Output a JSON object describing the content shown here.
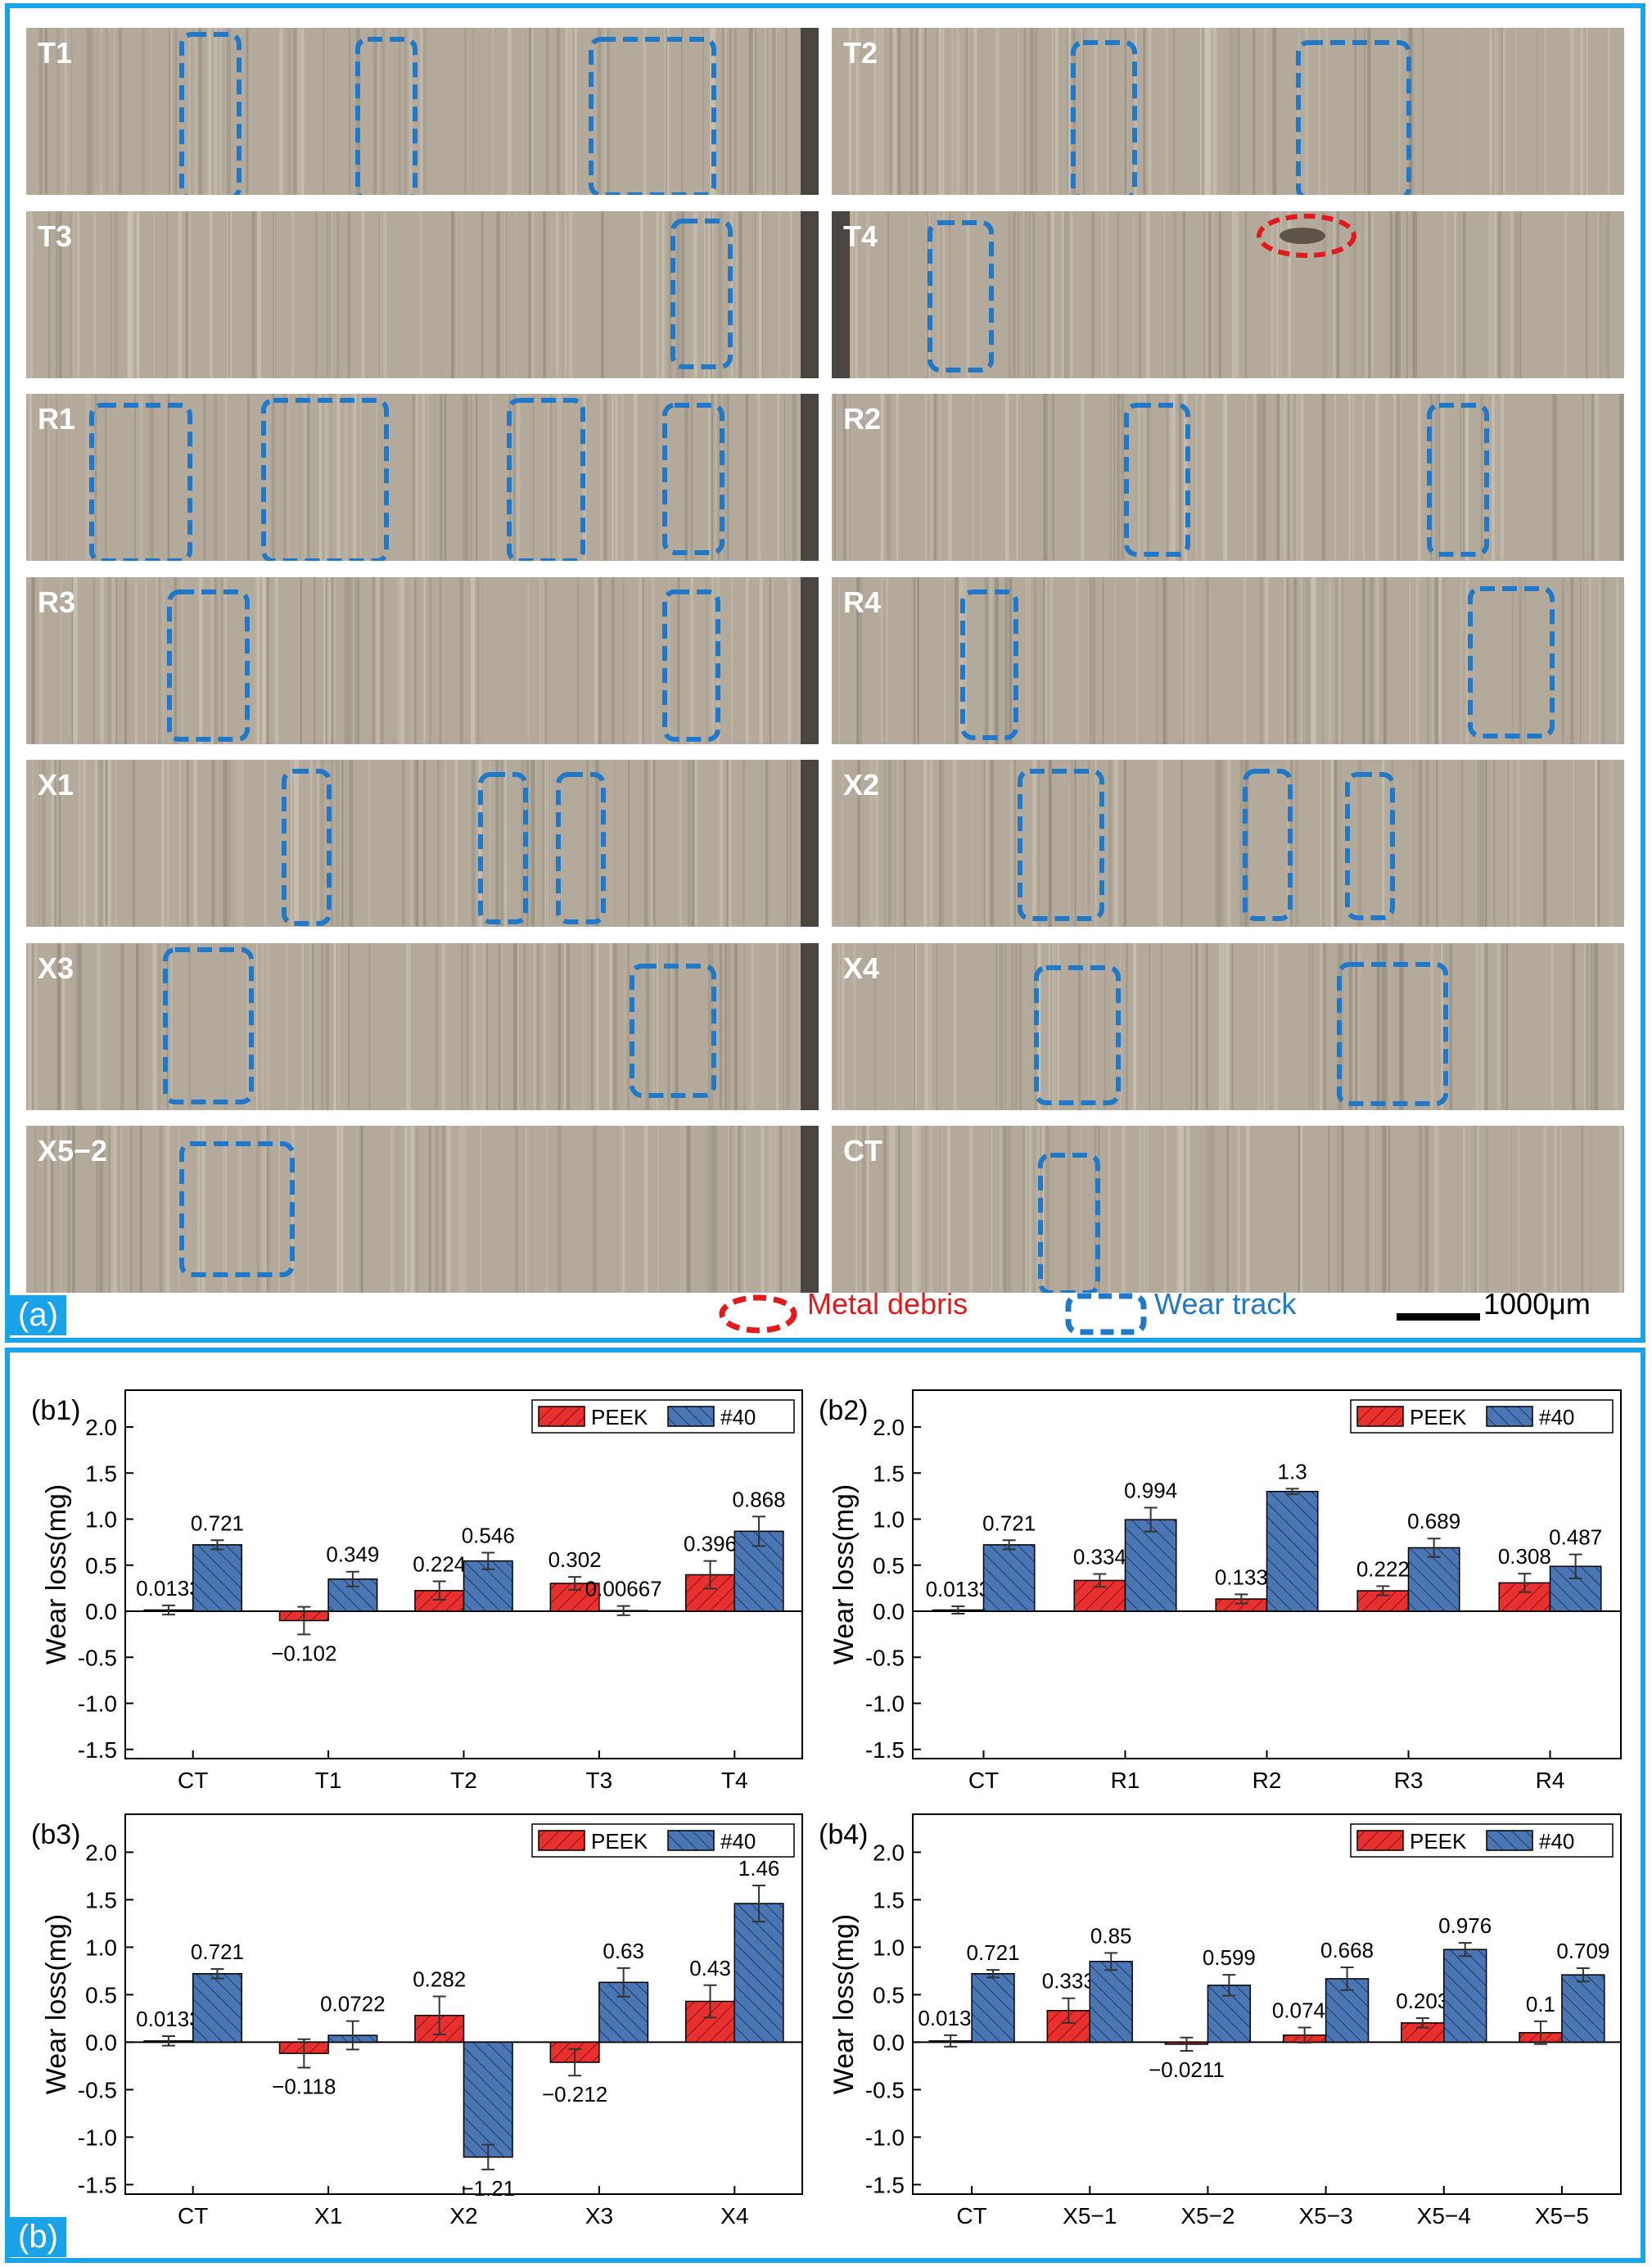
{
  "panel_a": {
    "label": "(a)",
    "samples": [
      {
        "label": "T1",
        "track_count": 3,
        "debris": false
      },
      {
        "label": "T2",
        "track_count": 2,
        "debris": false
      },
      {
        "label": "T3",
        "track_count": 1,
        "debris": false
      },
      {
        "label": "T4",
        "track_count": 1,
        "debris": true
      },
      {
        "label": "R1",
        "track_count": 4,
        "debris": false
      },
      {
        "label": "R2",
        "track_count": 2,
        "debris": false
      },
      {
        "label": "R3",
        "track_count": 2,
        "debris": false
      },
      {
        "label": "R4",
        "track_count": 2,
        "debris": false
      },
      {
        "label": "X1",
        "track_count": 3,
        "debris": false
      },
      {
        "label": "X2",
        "track_count": 3,
        "debris": false
      },
      {
        "label": "X3",
        "track_count": 2,
        "debris": false
      },
      {
        "label": "X4",
        "track_count": 2,
        "debris": false
      },
      {
        "label": "X5−2",
        "track_count": 1,
        "debris": false
      },
      {
        "label": "CT",
        "track_count": 1,
        "debris": false
      }
    ],
    "legend": {
      "metal_debris": "Metal debris",
      "wear_track": "Wear track",
      "scale_bar": "1000μm"
    },
    "colors": {
      "debris": "#e31a1c",
      "track": "#1f78c8"
    }
  },
  "panel_b": {
    "label": "(b)"
  },
  "colors": {
    "peek": "#e8312f",
    "n40": "#4a76b4",
    "frame": "#1aa3e8"
  },
  "chart_data": [
    {
      "type": "bar",
      "panel": "(b1)",
      "ylabel": "Wear loss(mg)",
      "ylim": [
        -1.6,
        2.4
      ],
      "yticks": [
        "2.0",
        "1.5",
        "1.0",
        "0.5",
        "0.0",
        "-0.5",
        "-1.0",
        "-1.5"
      ],
      "categories": [
        "CT",
        "T1",
        "T2",
        "T3",
        "T4"
      ],
      "legend": "top-right",
      "series": [
        {
          "name": "PEEK",
          "values": [
            0.0133,
            -0.102,
            0.224,
            0.302,
            0.396
          ],
          "labels": [
            "0.0133",
            "−0.102",
            "0.224",
            "0.302",
            "0.396"
          ],
          "errors": [
            0.05,
            0.15,
            0.1,
            0.07,
            0.15
          ]
        },
        {
          "name": "#40",
          "values": [
            0.721,
            0.349,
            0.546,
            0.00667,
            0.868
          ],
          "labels": [
            "0.721",
            "0.349",
            "0.546",
            "0.00667",
            "0.868"
          ],
          "errors": [
            0.05,
            0.08,
            0.09,
            0.05,
            0.16
          ]
        }
      ]
    },
    {
      "type": "bar",
      "panel": "(b2)",
      "ylabel": "Wear loss(mg)",
      "ylim": [
        -1.6,
        2.4
      ],
      "yticks": [
        "2.0",
        "1.5",
        "1.0",
        "0.5",
        "0.0",
        "-0.5",
        "-1.0",
        "-1.5"
      ],
      "categories": [
        "CT",
        "R1",
        "R2",
        "R3",
        "R4"
      ],
      "legend": "top-right",
      "series": [
        {
          "name": "PEEK",
          "values": [
            0.0133,
            0.334,
            0.133,
            0.222,
            0.308
          ],
          "labels": [
            "0.0133",
            "0.334",
            "0.133",
            "0.222",
            "0.308"
          ],
          "errors": [
            0.04,
            0.07,
            0.05,
            0.05,
            0.1
          ]
        },
        {
          "name": "#40",
          "values": [
            0.721,
            0.994,
            1.3,
            0.689,
            0.487
          ],
          "labels": [
            "0.721",
            "0.994",
            "1.3",
            "0.689",
            "0.487"
          ],
          "errors": [
            0.05,
            0.13,
            0.03,
            0.1,
            0.13
          ]
        }
      ]
    },
    {
      "type": "bar",
      "panel": "(b3)",
      "ylabel": "Wear loss(mg)",
      "ylim": [
        -1.6,
        2.4
      ],
      "yticks": [
        "2.0",
        "1.5",
        "1.0",
        "0.5",
        "0.0",
        "-0.5",
        "-1.0",
        "-1.5"
      ],
      "categories": [
        "CT",
        "X1",
        "X2",
        "X3",
        "X4"
      ],
      "legend": "top-right",
      "series": [
        {
          "name": "PEEK",
          "values": [
            0.0133,
            -0.118,
            0.282,
            -0.212,
            0.43
          ],
          "labels": [
            "0.0133",
            "−0.118",
            "0.282",
            "−0.212",
            "0.43"
          ],
          "errors": [
            0.05,
            0.15,
            0.2,
            0.14,
            0.17
          ]
        },
        {
          "name": "#40",
          "values": [
            0.721,
            0.0722,
            -1.21,
            0.63,
            1.46
          ],
          "labels": [
            "0.721",
            "0.0722",
            "−1.21",
            "0.63",
            "1.46"
          ],
          "errors": [
            0.05,
            0.15,
            0.13,
            0.15,
            0.19
          ]
        }
      ]
    },
    {
      "type": "bar",
      "panel": "(b4)",
      "ylabel": "Wear loss(mg)",
      "ylim": [
        -1.6,
        2.4
      ],
      "yticks": [
        "2.0",
        "1.5",
        "1.0",
        "0.5",
        "0.0",
        "-0.5",
        "-1.0",
        "-1.5"
      ],
      "categories": [
        "CT",
        "X5−1",
        "X5−2",
        "X5−3",
        "X5−4",
        "X5−5"
      ],
      "legend": "top-right",
      "series": [
        {
          "name": "PEEK",
          "values": [
            0.0133,
            0.333,
            -0.0211,
            0.0744,
            0.203,
            0.1
          ],
          "labels": [
            "0.0133",
            "0.333",
            "−0.0211",
            "0.0744",
            "0.203",
            "0.1"
          ],
          "errors": [
            0.06,
            0.13,
            0.07,
            0.08,
            0.05,
            0.12
          ]
        },
        {
          "name": "#40",
          "values": [
            0.721,
            0.85,
            0.599,
            0.668,
            0.976,
            0.709
          ],
          "labels": [
            "0.721",
            "0.85",
            "0.599",
            "0.668",
            "0.976",
            "0.709"
          ],
          "errors": [
            0.04,
            0.09,
            0.11,
            0.12,
            0.07,
            0.07
          ]
        }
      ]
    }
  ]
}
